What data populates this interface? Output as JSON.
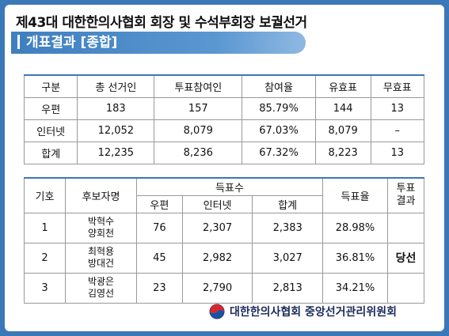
{
  "title": "제43대 대한한의사협회 회장 및 수석부회장 보궐선거",
  "section": "개표결과 [종합]",
  "turnout": {
    "headers": [
      "구분",
      "총 선거인",
      "투표참여인",
      "참여율",
      "유효표",
      "무효표"
    ],
    "rows": [
      [
        "우편",
        "183",
        "157",
        "85.79%",
        "144",
        "13"
      ],
      [
        "인터넷",
        "12,052",
        "8,079",
        "67.03%",
        "8,079",
        "–"
      ],
      [
        "합계",
        "12,235",
        "8,236",
        "67.32%",
        "8,223",
        "13"
      ]
    ]
  },
  "results": {
    "h_number": "기호",
    "h_candidate": "후보자명",
    "h_votes": "득표수",
    "h_mail": "우편",
    "h_internet": "인터넷",
    "h_total": "합계",
    "h_rate": "득표율",
    "h_result": "투표결과",
    "rows": [
      {
        "num": "1",
        "name1": "박혁수",
        "name2": "양회천",
        "mail": "76",
        "internet": "2,307",
        "total": "2,383",
        "rate": "28.98%",
        "result": ""
      },
      {
        "num": "2",
        "name1": "최혁용",
        "name2": "방대건",
        "mail": "45",
        "internet": "2,982",
        "total": "3,027",
        "rate": "36.81%",
        "result": "당선"
      },
      {
        "num": "3",
        "name1": "박광은",
        "name2": "김영선",
        "mail": "23",
        "internet": "2,790",
        "total": "2,813",
        "rate": "34.21%",
        "result": ""
      }
    ]
  },
  "footer": "대한한의사협회 중앙선거관리위원회",
  "colors": {
    "frame": "#3a78b8",
    "section_bar": "#4a89c8"
  }
}
